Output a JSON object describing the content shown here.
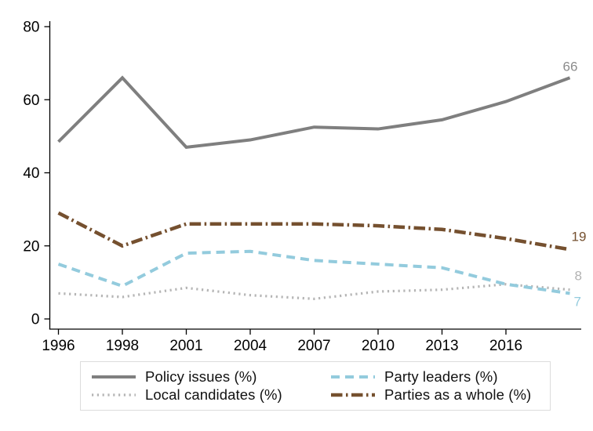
{
  "chart_data": {
    "type": "line",
    "title": "",
    "xlabel": "",
    "ylabel": "",
    "ylim": [
      0,
      80
    ],
    "y_ticks": [
      0,
      20,
      40,
      60,
      80
    ],
    "x_tick_labels": [
      "1996",
      "1998",
      "2001",
      "2004",
      "2007",
      "2010",
      "2013",
      "2016"
    ],
    "n_points": 9,
    "grid": "off",
    "legend_position": "bottom",
    "series": [
      {
        "name": "Policy issues (%)",
        "color": "#7f7f7f",
        "style": "solid",
        "values": [
          48.5,
          66,
          47,
          49,
          52.5,
          52,
          54.5,
          59.5,
          66
        ],
        "end_label": "66",
        "end_label_color": "#8c8c8c"
      },
      {
        "name": "Party leaders (%)",
        "color": "#93cbdd",
        "style": "dashed",
        "values": [
          15,
          9,
          18,
          18.5,
          16,
          15,
          14,
          9.5,
          7
        ],
        "end_label": "7",
        "end_label_color": "#93cbdd"
      },
      {
        "name": "Local candidates (%)",
        "color": "#b5b5b5",
        "style": "dotted",
        "values": [
          7,
          6,
          8.5,
          6.5,
          5.5,
          7.5,
          8,
          9.5,
          8
        ],
        "end_label": "8",
        "end_label_color": "#b2b2b2"
      },
      {
        "name": "Parties as a whole (%)",
        "color": "#75502f",
        "style": "dashdot",
        "values": [
          29,
          20,
          26,
          26,
          26,
          25.5,
          24.5,
          22,
          19
        ],
        "end_label": "19",
        "end_label_color": "#75502f"
      }
    ]
  }
}
